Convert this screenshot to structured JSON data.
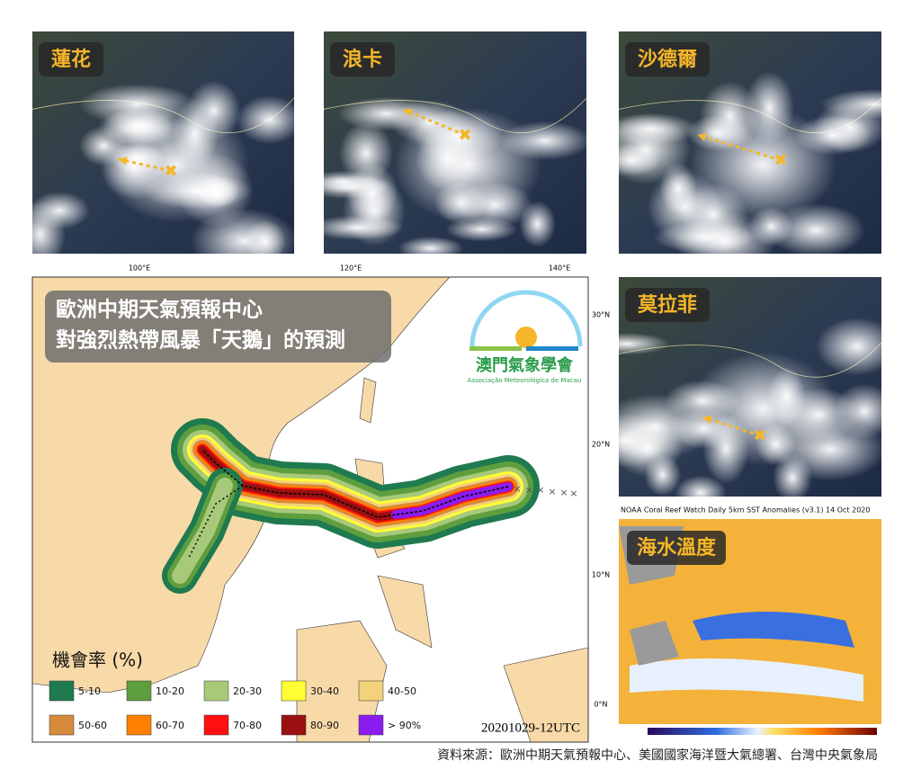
{
  "panels": [
    {
      "label": "蓮花"
    },
    {
      "label": "浪卡"
    },
    {
      "label": "沙德爾"
    },
    {
      "label": "莫拉菲"
    }
  ],
  "sst": {
    "label": "海水溫度",
    "header": "NOAA Coral Reef Watch Daily 5km SST Anomalies  (v3.1)   14 Oct 2020"
  },
  "map": {
    "title_lines": [
      "歐洲中期天氣預報中心",
      "對強烈熱帶風暴「天鵝」的預測"
    ],
    "lon_labels": [
      "100°E",
      "120°E",
      "140°E"
    ],
    "lat_labels": [
      "30°N",
      "20°N",
      "10°N",
      "0°N"
    ],
    "logo_name": "澳門氣象學會",
    "logo_sub": "Associação Meteorológica de Macau",
    "legend_title": "機會率 (%)",
    "legend": [
      {
        "label": "5-10",
        "color": "#1f7a4f"
      },
      {
        "label": "10-20",
        "color": "#5e9e3f"
      },
      {
        "label": "20-30",
        "color": "#a9c97a"
      },
      {
        "label": "30-40",
        "color": "#ffff33"
      },
      {
        "label": "40-50",
        "color": "#f2d27a"
      },
      {
        "label": "50-60",
        "color": "#d88a3c"
      },
      {
        "label": "60-70",
        "color": "#ff8000"
      },
      {
        "label": "70-80",
        "color": "#ff1010"
      },
      {
        "label": "80-90",
        "color": "#9b1010"
      },
      {
        "label": "> 90%",
        "color": "#8b1cf0"
      }
    ],
    "timestamp": "20201029-12UTC"
  },
  "source": "資料來源：歐洲中期天氣預報中心、美國國家海洋暨大氣總署、台灣中央氣象局"
}
